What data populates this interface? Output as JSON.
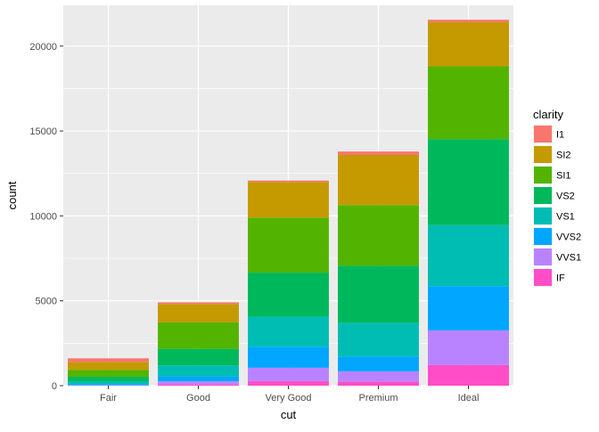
{
  "chart_data": {
    "type": "bar",
    "stacked": true,
    "xlabel": "cut",
    "ylabel": "count",
    "ylim": [
      0,
      22400
    ],
    "yticks": [
      0,
      5000,
      10000,
      15000,
      20000
    ],
    "ytick_labels": [
      "0",
      "5000",
      "10000",
      "15000",
      "20000"
    ],
    "categories": [
      "Fair",
      "Good",
      "Very Good",
      "Premium",
      "Ideal"
    ],
    "legend": {
      "title": "clarity",
      "placement": "right"
    },
    "series": [
      {
        "name": "I1",
        "color": "#F8766D",
        "values": [
          210,
          96,
          84,
          205,
          146
        ]
      },
      {
        "name": "SI2",
        "color": "#C49A00",
        "values": [
          466,
          1081,
          2100,
          2949,
          2598
        ]
      },
      {
        "name": "SI1",
        "color": "#53B400",
        "values": [
          408,
          1560,
          3240,
          3575,
          4282
        ]
      },
      {
        "name": "VS2",
        "color": "#00B85C",
        "values": [
          261,
          978,
          2591,
          3357,
          5071
        ]
      },
      {
        "name": "VS1",
        "color": "#00BDB3",
        "values": [
          170,
          648,
          1775,
          1989,
          3589
        ]
      },
      {
        "name": "VVS2",
        "color": "#00A6FF",
        "values": [
          69,
          286,
          1235,
          870,
          2606
        ]
      },
      {
        "name": "VVS1",
        "color": "#B983FF",
        "values": [
          17,
          186,
          789,
          616,
          2047
        ]
      },
      {
        "name": "IF",
        "color": "#FF4DC8",
        "values": [
          9,
          71,
          268,
          230,
          1212
        ]
      }
    ],
    "grid": true,
    "panel_background": "#EBEBEB",
    "grid_color": "#FFFFFF"
  }
}
